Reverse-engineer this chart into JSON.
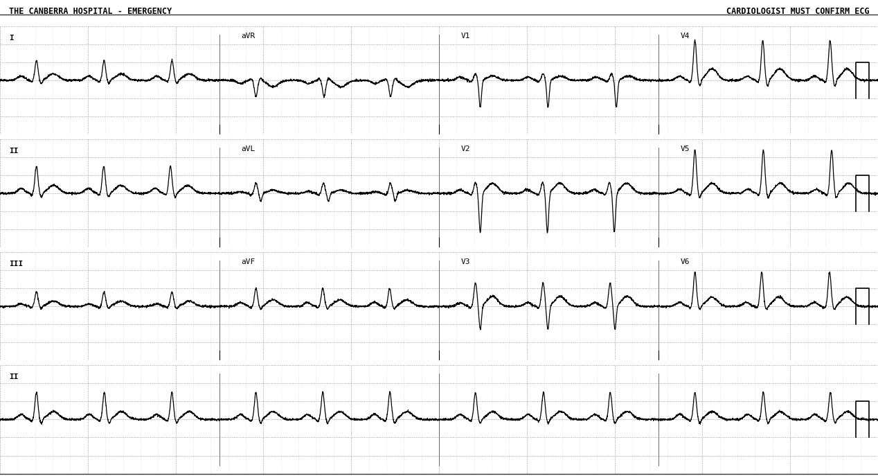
{
  "title_left": "THE CANBERRA HOSPITAL - EMERGENCY",
  "title_right": "CARDIOLOGIST MUST CONFIRM ECG",
  "bg_color": "#ffffff",
  "grid_minor_color": "#cccccc",
  "grid_major_color": "#aaaaaa",
  "line_color": "#000000",
  "text_color": "#000000",
  "figsize": [
    12.68,
    6.87
  ],
  "dpi": 100,
  "row_lead_labels": [
    "I",
    "II",
    "III",
    "II"
  ],
  "col_labels_per_row": [
    [
      "",
      "aVR",
      "V1",
      "V4"
    ],
    [
      "",
      "aVL",
      "V2",
      "V5"
    ],
    [
      "",
      "aVF",
      "V3",
      "V6"
    ],
    [
      "",
      "",
      "",
      ""
    ]
  ],
  "total_duration": 10.0,
  "fs": 500,
  "n_rows": 4,
  "n_cols": 4
}
